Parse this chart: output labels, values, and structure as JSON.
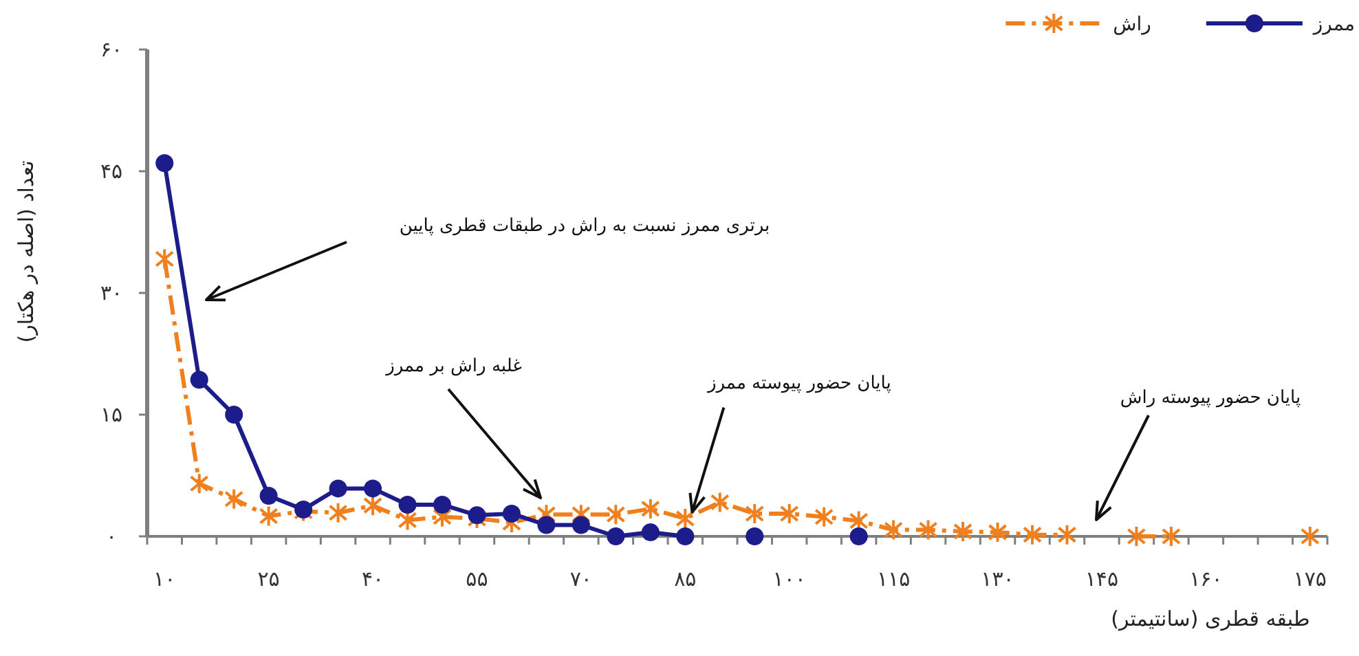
{
  "chart_data": {
    "type": "line",
    "xlabel": "طبقه قطری (سانتیمتر)",
    "ylabel": "تعداد (اصله در هکتار)",
    "x": [
      10,
      15,
      20,
      25,
      30,
      35,
      40,
      45,
      50,
      55,
      60,
      65,
      70,
      75,
      80,
      85,
      90,
      95,
      100,
      105,
      110,
      115,
      120,
      125,
      130,
      135,
      140,
      150,
      155
    ],
    "series": [
      {
        "name": "ممرز",
        "color": "#1c1c8a",
        "marker": "circle",
        "line_style": "solid",
        "values": [
          46,
          19.3,
          15,
          5,
          3.3,
          5.9,
          5.9,
          3.9,
          3.9,
          2.6,
          2.8,
          1.4,
          1.4,
          0,
          0.5,
          0,
          null,
          0,
          null,
          null,
          0,
          null,
          null,
          null,
          null,
          null,
          null,
          null,
          null
        ]
      },
      {
        "name": "راش",
        "color": "#f07f1e",
        "marker": "cross",
        "line_style": "dashed",
        "values": [
          34.2,
          6.5,
          4.6,
          2.5,
          3.1,
          2.9,
          3.8,
          2,
          2.4,
          2.2,
          1.7,
          2.7,
          2.7,
          2.7,
          3.4,
          2.2,
          4.2,
          2.8,
          2.8,
          2.4,
          1.9,
          0.8,
          0.8,
          0.6,
          0.5,
          0.2,
          0.2,
          0,
          0
        ]
      },
      {
        "type": "scatter",
        "color": "#f07f1e",
        "marker": "cross",
        "x": [
          175
        ],
        "values": [
          0
        ]
      }
    ],
    "xlim": [
      7.5,
      177.5
    ],
    "xticks": [
      {
        "value": 10,
        "label": "۱۰"
      },
      {
        "value": 25,
        "label": "۲۵"
      },
      {
        "value": 40,
        "label": "۴۰"
      },
      {
        "value": 55,
        "label": "۵۵"
      },
      {
        "value": 70,
        "label": "۷۰"
      },
      {
        "value": 85,
        "label": "۸۵"
      },
      {
        "value": 100,
        "label": "۱۰۰"
      },
      {
        "value": 115,
        "label": "۱۱۵"
      },
      {
        "value": 130,
        "label": "۱۳۰"
      },
      {
        "value": 145,
        "label": "۱۴۵"
      },
      {
        "value": 160,
        "label": "۱۶۰"
      },
      {
        "value": 175,
        "label": "۱۷۵"
      },
      {
        "value": 7.5,
        "label": null
      },
      {
        "value": 12.5,
        "label": null
      },
      {
        "value": 17.5,
        "label": null
      },
      {
        "value": 22.5,
        "label": null
      },
      {
        "value": 27.5,
        "label": null
      },
      {
        "value": 32.5,
        "label": null
      },
      {
        "value": 37.5,
        "label": null
      },
      {
        "value": 42.5,
        "label": null
      },
      {
        "value": 47.5,
        "label": null
      },
      {
        "value": 52.5,
        "label": null
      },
      {
        "value": 57.5,
        "label": null
      },
      {
        "value": 62.5,
        "label": null
      },
      {
        "value": 67.5,
        "label": null
      },
      {
        "value": 72.5,
        "label": null
      },
      {
        "value": 77.5,
        "label": null
      },
      {
        "value": 82.5,
        "label": null
      },
      {
        "value": 87.5,
        "label": null
      },
      {
        "value": 92.5,
        "label": null
      },
      {
        "value": 97.5,
        "label": null
      },
      {
        "value": 102.5,
        "label": null
      },
      {
        "value": 107.5,
        "label": null
      },
      {
        "value": 112.5,
        "label": null
      },
      {
        "value": 117.5,
        "label": null
      },
      {
        "value": 122.5,
        "label": null
      },
      {
        "value": 127.5,
        "label": null
      },
      {
        "value": 132.5,
        "label": null
      },
      {
        "value": 137.5,
        "label": null
      },
      {
        "value": 142.5,
        "label": null
      },
      {
        "value": 147.5,
        "label": null
      },
      {
        "value": 152.5,
        "label": null
      },
      {
        "value": 157.5,
        "label": null
      },
      {
        "value": 162.5,
        "label": null
      },
      {
        "value": 167.5,
        "label": null
      },
      {
        "value": 172.5,
        "label": null
      },
      {
        "value": 177.5,
        "label": null
      }
    ],
    "ylim": [
      0,
      60
    ],
    "yticks": [
      {
        "value": 0,
        "label": "۰"
      },
      {
        "value": 15,
        "label": "۱۵"
      },
      {
        "value": 30,
        "label": "۳۰"
      },
      {
        "value": 45,
        "label": "۴۵"
      },
      {
        "value": 60,
        "label": "۶۰"
      }
    ],
    "grid": false,
    "legend": "top right",
    "annotations": [
      "برتری ممرز نسبت به راش در طبقات قطری پایین",
      "غلبه راش بر ممرز",
      {
        "text": "پایان حضور پیوسته ممرز",
        "x": 86,
        "y": 3
      },
      "پایان حضور پیوسته راش"
    ]
  }
}
